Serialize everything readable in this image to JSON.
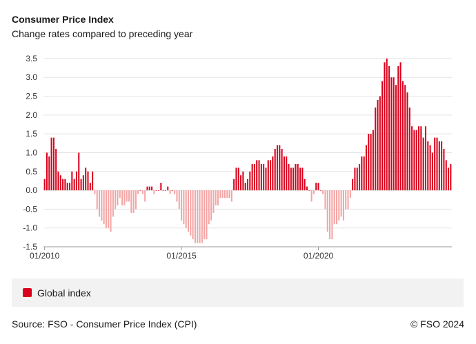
{
  "header": {
    "title": "Consumer Price Index",
    "subtitle": "Change rates compared to preceding year"
  },
  "legend": {
    "label": "Global index"
  },
  "footer": {
    "source": "Source: FSO - Consumer Price Index (CPI)",
    "copyright": "© FSO 2024"
  },
  "colors": {
    "positive": "#d9001b",
    "negative": "#f4a5a5",
    "grid": "#e3e3e3",
    "axis": "#999999"
  },
  "chart_data": {
    "type": "bar",
    "title": "Consumer Price Index",
    "subtitle": "Change rates compared to preceding year",
    "xlabel": "",
    "ylabel": "",
    "ylim": [
      -1.5,
      3.7
    ],
    "yticks": [
      3.5,
      3.0,
      2.5,
      2.0,
      1.5,
      1.0,
      0.5,
      0.0,
      -0.5,
      -1.0,
      -1.5
    ],
    "ytick_labels": [
      "3.5",
      "3.0",
      "2.5",
      "2.0",
      "1.5",
      "1.0",
      "0.5",
      "0.0",
      "-0.5",
      "-1.0",
      "-1.5"
    ],
    "xticks": [
      {
        "index": 0,
        "label": "01/2010"
      },
      {
        "index": 60,
        "label": "01/2015"
      },
      {
        "index": 120,
        "label": "01/2020"
      }
    ],
    "start": "01/2010",
    "frequency": "monthly",
    "series": [
      {
        "name": "Global index",
        "values": [
          0.3,
          1.0,
          0.9,
          1.4,
          1.4,
          1.1,
          0.5,
          0.4,
          0.3,
          0.3,
          0.2,
          0.2,
          0.5,
          0.3,
          0.5,
          1.0,
          0.3,
          0.4,
          0.6,
          0.5,
          0.2,
          0.5,
          -0.1,
          -0.5,
          -0.7,
          -0.8,
          -0.9,
          -1.0,
          -1.0,
          -1.1,
          -0.7,
          -0.5,
          -0.4,
          -0.2,
          -0.4,
          -0.4,
          -0.3,
          -0.3,
          -0.6,
          -0.6,
          -0.5,
          -0.1,
          0.0,
          -0.1,
          -0.3,
          0.1,
          0.1,
          0.1,
          -0.1,
          0.0,
          0.0,
          0.2,
          0.0,
          0.0,
          0.1,
          -0.1,
          0.0,
          -0.1,
          -0.3,
          -0.5,
          -0.8,
          -0.9,
          -1.0,
          -1.1,
          -1.2,
          -1.3,
          -1.4,
          -1.4,
          -1.4,
          -1.4,
          -1.3,
          -1.3,
          -0.9,
          -0.8,
          -0.6,
          -0.4,
          -0.4,
          -0.2,
          -0.2,
          -0.2,
          -0.2,
          -0.2,
          -0.3,
          0.3,
          0.6,
          0.6,
          0.4,
          0.5,
          0.2,
          0.3,
          0.5,
          0.7,
          0.7,
          0.8,
          0.8,
          0.7,
          0.7,
          0.6,
          0.8,
          0.8,
          0.9,
          1.1,
          1.2,
          1.2,
          1.1,
          0.9,
          0.9,
          0.7,
          0.6,
          0.6,
          0.7,
          0.7,
          0.6,
          0.6,
          0.3,
          0.1,
          0.0,
          -0.3,
          -0.1,
          0.2,
          0.2,
          0.0,
          -0.1,
          -0.5,
          -1.1,
          -1.3,
          -1.3,
          -0.9,
          -0.9,
          -0.8,
          -0.7,
          -0.8,
          -0.5,
          -0.5,
          -0.2,
          0.3,
          0.6,
          0.6,
          0.7,
          0.9,
          0.9,
          1.2,
          1.5,
          1.5,
          1.6,
          2.2,
          2.4,
          2.5,
          2.9,
          3.4,
          3.5,
          3.3,
          3.0,
          3.0,
          2.8,
          3.3,
          3.4,
          2.9,
          2.8,
          2.6,
          2.2,
          1.7,
          1.6,
          1.6,
          1.7,
          1.7,
          1.4,
          1.7,
          1.3,
          1.2,
          1.0,
          1.4,
          1.4,
          1.3,
          1.3,
          1.1,
          0.8,
          0.6,
          0.7
        ]
      }
    ]
  }
}
